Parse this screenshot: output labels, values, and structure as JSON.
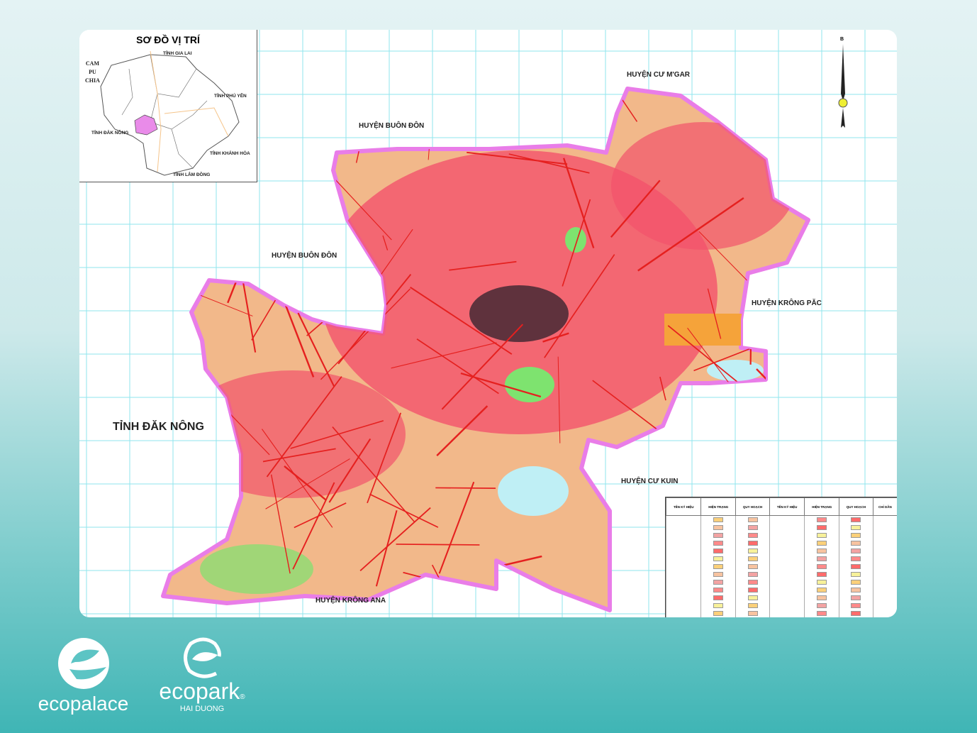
{
  "inset": {
    "title": "SƠ ĐỒ VỊ TRÍ",
    "labels": {
      "gia_lai": "TỈNH GIA LAI",
      "cambodia": "CAM\nPU\nCHIA",
      "phu_yen": "TỈNH PHÚ YÊN",
      "dak_nong": "TỈNH ĐĂK NÔNG",
      "khanh_hoa": "TỈNH KHÁNH HÒA",
      "lam_dong": "TỈNH LÂM ĐỒNG"
    },
    "highlight_color": "#e98be9"
  },
  "map": {
    "labels": {
      "cu_mgar": "HUYỆN CƯ M'GAR",
      "buon_don_n": "HUYỆN BUÔN ĐÔN",
      "buon_don_w": "HUYỆN BUÔN ĐÔN",
      "krong_pac": "HUYỆN KRÔNG PĂC",
      "dak_nong": "TỈNH ĐĂK NÔNG",
      "cu_kuin": "HUYỆN CƯ KUIN",
      "krong_ana": "HUYỆN KRÔNG ANA"
    },
    "north_label": "B",
    "colors": {
      "base": "#f2b88a",
      "urban": "#f2536b",
      "road": "#e5201f",
      "green": "#7ee36f",
      "water": "#bfeff5",
      "grid": "#8fe6ee",
      "boundary": "#e97de8"
    }
  },
  "legend": {
    "headers": [
      "TÊN KÝ HIỆU",
      "HIỆN TRẠNG",
      "QUY HOẠCH",
      "TÊN KÝ HIỆU",
      "HIỆN TRẠNG",
      "QUY HOẠCH",
      "CHỈ DẪN"
    ],
    "sub_headers": [
      "HIỆN TRẠNG",
      "QUY HOẠCH",
      "TÊN KÝ HIỆU"
    ]
  },
  "logos": {
    "ecopalace": "ecopalace",
    "ecopark": "ecopark",
    "ecopark_reg": "®",
    "ecopark_sub": "HAI DUONG"
  }
}
